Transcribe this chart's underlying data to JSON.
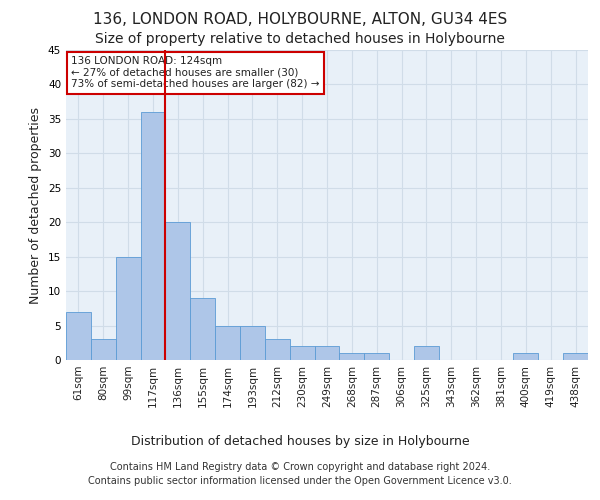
{
  "title": "136, LONDON ROAD, HOLYBOURNE, ALTON, GU34 4ES",
  "subtitle": "Size of property relative to detached houses in Holybourne",
  "xlabel": "Distribution of detached houses by size in Holybourne",
  "ylabel": "Number of detached properties",
  "categories": [
    "61sqm",
    "80sqm",
    "99sqm",
    "117sqm",
    "136sqm",
    "155sqm",
    "174sqm",
    "193sqm",
    "212sqm",
    "230sqm",
    "249sqm",
    "268sqm",
    "287sqm",
    "306sqm",
    "325sqm",
    "343sqm",
    "362sqm",
    "381sqm",
    "400sqm",
    "419sqm",
    "438sqm"
  ],
  "values": [
    7,
    3,
    15,
    36,
    20,
    9,
    5,
    5,
    3,
    2,
    2,
    1,
    1,
    0,
    2,
    0,
    0,
    0,
    1,
    0,
    1
  ],
  "bar_color": "#aec6e8",
  "bar_edge_color": "#5b9bd5",
  "highlight_index": 4,
  "highlight_line_color": "#cc0000",
  "annotation_text": "136 LONDON ROAD: 124sqm\n← 27% of detached houses are smaller (30)\n73% of semi-detached houses are larger (82) →",
  "annotation_box_color": "#ffffff",
  "annotation_box_edge_color": "#cc0000",
  "ylim": [
    0,
    45
  ],
  "yticks": [
    0,
    5,
    10,
    15,
    20,
    25,
    30,
    35,
    40,
    45
  ],
  "grid_color": "#d0dce8",
  "background_color": "#e8f0f8",
  "footer_line1": "Contains HM Land Registry data © Crown copyright and database right 2024.",
  "footer_line2": "Contains public sector information licensed under the Open Government Licence v3.0.",
  "title_fontsize": 11,
  "subtitle_fontsize": 10,
  "xlabel_fontsize": 9,
  "ylabel_fontsize": 9,
  "tick_fontsize": 7.5,
  "footer_fontsize": 7
}
